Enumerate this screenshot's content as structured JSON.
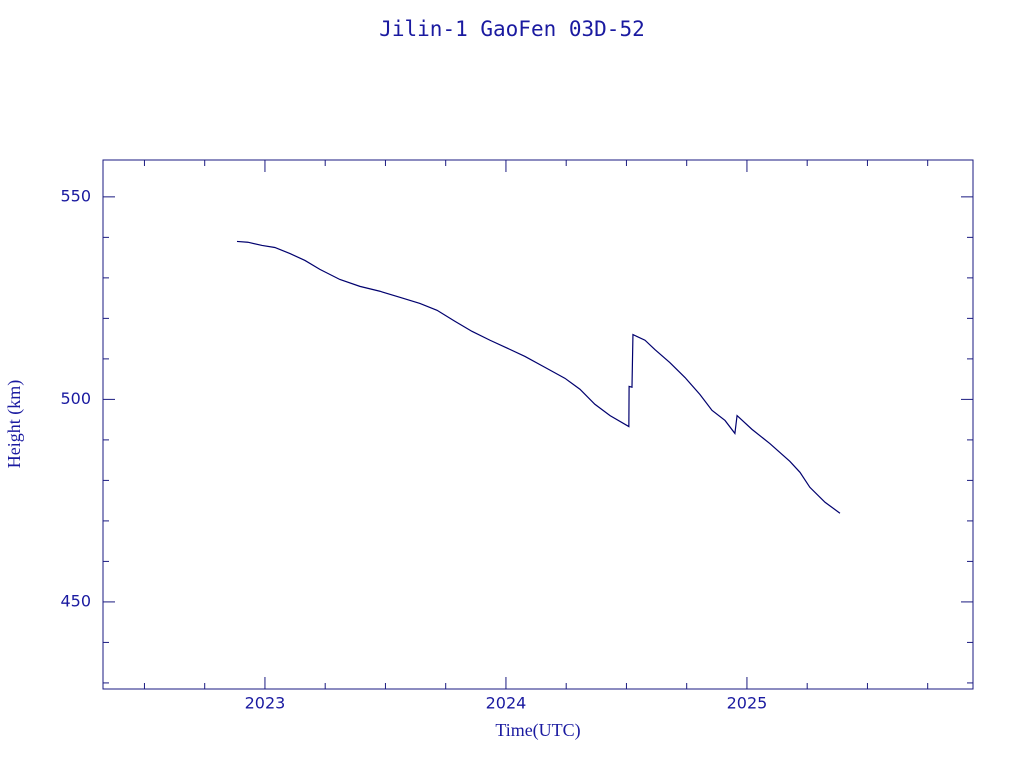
{
  "chart_data": {
    "type": "line",
    "title": "Jilin-1 GaoFen 03D-52",
    "x_label": "Time(UTC)",
    "y_label": "Height (km)",
    "xlim": [
      2022.328,
      2025.938
    ],
    "ylim": [
      428.5,
      559.1
    ],
    "xticks": [
      {
        "value": 2023,
        "label": "2023"
      },
      {
        "value": 2024,
        "label": "2024"
      },
      {
        "value": 2025,
        "label": "2025"
      }
    ],
    "yticks": [
      450,
      500,
      550
    ],
    "xminorticks": [
      2022.5,
      2022.75,
      2023.25,
      2023.5,
      2023.75,
      2024.25,
      2024.5,
      2024.75,
      2025.25,
      2025.5,
      2025.75
    ],
    "yminorticks": [
      430,
      440,
      460,
      470,
      480,
      490,
      510,
      520,
      530,
      540
    ],
    "series": [
      {
        "name": "Height",
        "color": "#00006e",
        "x": [
          2022.884,
          2022.929,
          2022.988,
          2023.041,
          2023.104,
          2023.166,
          2023.228,
          2023.311,
          2023.394,
          2023.477,
          2023.56,
          2023.643,
          2023.714,
          2023.788,
          2023.859,
          2023.934,
          2024.0,
          2024.079,
          2024.162,
          2024.245,
          2024.307,
          2024.369,
          2024.432,
          2024.51,
          2024.511,
          2024.523,
          2024.527,
          2024.577,
          2024.618,
          2024.68,
          2024.743,
          2024.805,
          2024.855,
          2024.909,
          2024.95,
          2024.959,
          2025.021,
          2025.095,
          2025.178,
          2025.22,
          2025.261,
          2025.324,
          2025.386
        ],
        "values": [
          539.0,
          538.8,
          538.0,
          537.5,
          536.0,
          534.3,
          532.1,
          529.6,
          527.9,
          526.7,
          525.2,
          523.7,
          522.0,
          519.3,
          516.8,
          514.6,
          512.8,
          510.6,
          507.9,
          505.2,
          502.5,
          498.8,
          496.0,
          493.3,
          503.2,
          503.0,
          516.0,
          514.6,
          512.3,
          509.1,
          505.4,
          501.2,
          497.3,
          494.8,
          491.6,
          496.0,
          492.6,
          489.1,
          484.7,
          482.0,
          478.3,
          474.6,
          471.9
        ]
      }
    ]
  }
}
